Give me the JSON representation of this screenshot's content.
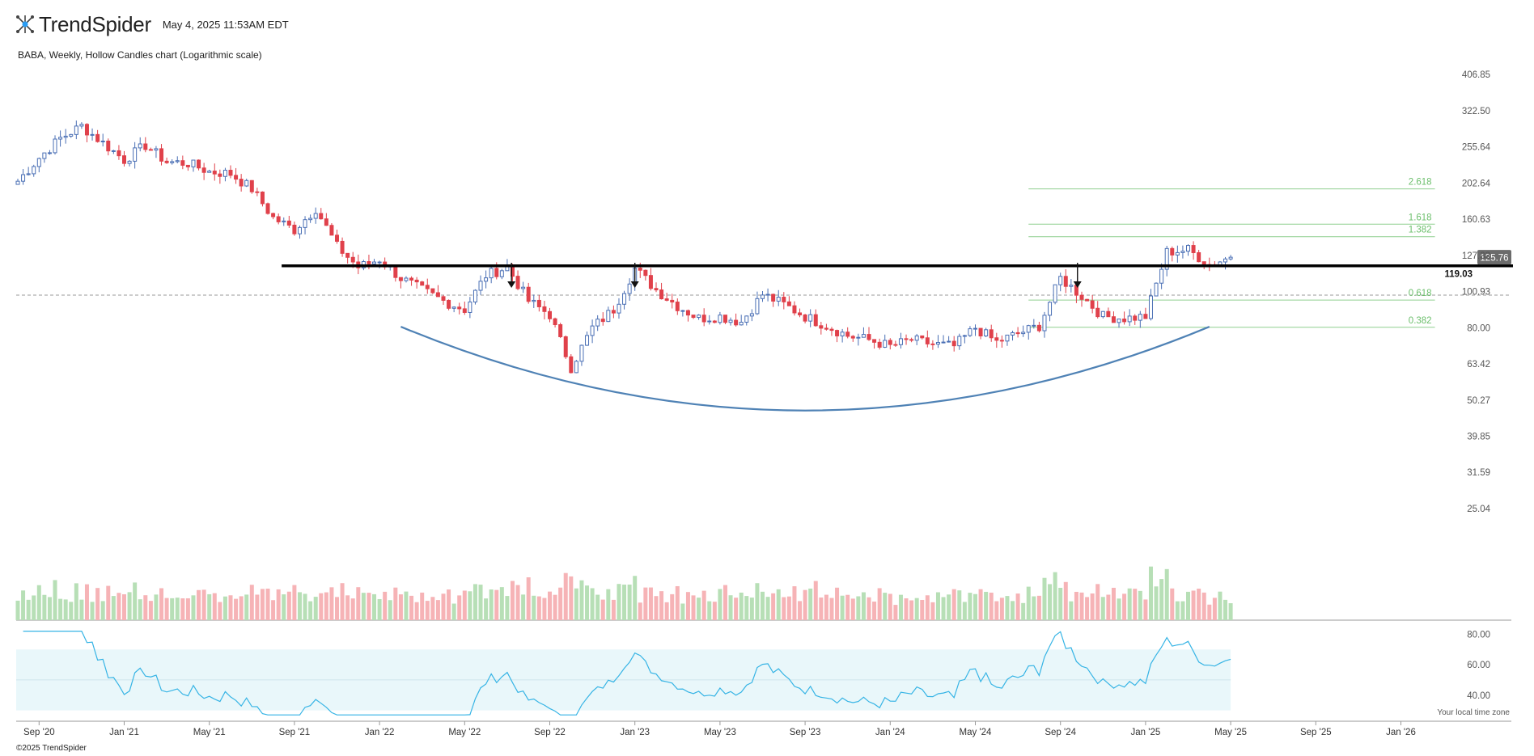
{
  "header": {
    "brand_light": "Trend",
    "brand_bold": "",
    "brand_rest": "Spider",
    "timestamp": "May 4, 2025 11:53AM EDT",
    "subtitle": "BABA, Weekly, Hollow Candles chart (Logarithmic scale)"
  },
  "footer": {
    "copyright": "©2025 TrendSpider",
    "tz_note": "Your local time zone"
  },
  "colors": {
    "up": "#4a6fb5",
    "down": "#e0414b",
    "vol_up": "#b7dfb6",
    "vol_down": "#f6b3b6",
    "rsi_line": "#36b4e5",
    "rsi_band": "#e9f7fa",
    "fib": "#8fcf8f",
    "curve": "#4f82b5",
    "price_tag": "#6b6b6b"
  },
  "chart_data": {
    "type": "candlestick",
    "scale": "log",
    "symbol": "BABA",
    "interval": "Weekly",
    "y_ticks": [
      406.85,
      322.5,
      255.64,
      202.64,
      160.63,
      127.33,
      100.93,
      80.0,
      63.42,
      50.27,
      39.85,
      31.59,
      25.04
    ],
    "x_ticks": [
      "Sep '20",
      "Jan '21",
      "May '21",
      "Sep '21",
      "Jan '22",
      "May '22",
      "Sep '22",
      "Jan '23",
      "May '23",
      "Sep '23",
      "Jan '24",
      "May '24",
      "Sep '24",
      "Jan '25",
      "May '25",
      "Sep '25",
      "Jan '26"
    ],
    "last_price": 125.76,
    "resistance_level": 119.03,
    "resistance_label": "119.03",
    "fib_levels": [
      {
        "label": "2.618",
        "value": 195.0
      },
      {
        "label": "1.618",
        "value": 155.5
      },
      {
        "label": "1.382",
        "value": 143.5
      },
      {
        "label": "0.618",
        "value": 95.5
      },
      {
        "label": "0.382",
        "value": 80.2
      }
    ],
    "markers": [
      "Jul '22",
      "Jan '23",
      "Oct '24"
    ],
    "rounded_bottom": {
      "start": "Feb '22",
      "bottom": "Aug '23",
      "end": "Apr '25",
      "bottom_value": 47.0
    },
    "closes": [
      {
        "date": "2020-08",
        "close": 205
      },
      {
        "date": "2020-09",
        "close": 238
      },
      {
        "date": "2020-10",
        "close": 270
      },
      {
        "date": "2020-11",
        "close": 292
      },
      {
        "date": "2020-12",
        "close": 262
      },
      {
        "date": "2021-01",
        "close": 235
      },
      {
        "date": "2021-02",
        "close": 258
      },
      {
        "date": "2021-03",
        "close": 232
      },
      {
        "date": "2021-04",
        "close": 230
      },
      {
        "date": "2021-05",
        "close": 218
      },
      {
        "date": "2021-06",
        "close": 215
      },
      {
        "date": "2021-07",
        "close": 195
      },
      {
        "date": "2021-08",
        "close": 162
      },
      {
        "date": "2021-09",
        "close": 150
      },
      {
        "date": "2021-10",
        "close": 172
      },
      {
        "date": "2021-11",
        "close": 135
      },
      {
        "date": "2021-12",
        "close": 118
      },
      {
        "date": "2022-01",
        "close": 124
      },
      {
        "date": "2022-02",
        "close": 110
      },
      {
        "date": "2022-03",
        "close": 102
      },
      {
        "date": "2022-04",
        "close": 95
      },
      {
        "date": "2022-05",
        "close": 90
      },
      {
        "date": "2022-06",
        "close": 112
      },
      {
        "date": "2022-07",
        "close": 118
      },
      {
        "date": "2022-08",
        "close": 95
      },
      {
        "date": "2022-09",
        "close": 87
      },
      {
        "date": "2022-10",
        "close": 62
      },
      {
        "date": "2022-11",
        "close": 80
      },
      {
        "date": "2022-12",
        "close": 90
      },
      {
        "date": "2023-01",
        "close": 117
      },
      {
        "date": "2023-02",
        "close": 102
      },
      {
        "date": "2023-03",
        "close": 92
      },
      {
        "date": "2023-04",
        "close": 85
      },
      {
        "date": "2023-05",
        "close": 86
      },
      {
        "date": "2023-06",
        "close": 83
      },
      {
        "date": "2023-07",
        "close": 99
      },
      {
        "date": "2023-08",
        "close": 93
      },
      {
        "date": "2023-09",
        "close": 86
      },
      {
        "date": "2023-10",
        "close": 81
      },
      {
        "date": "2023-11",
        "close": 76
      },
      {
        "date": "2023-12",
        "close": 74
      },
      {
        "date": "2024-01",
        "close": 71
      },
      {
        "date": "2024-02",
        "close": 74
      },
      {
        "date": "2024-03",
        "close": 72
      },
      {
        "date": "2024-04",
        "close": 71
      },
      {
        "date": "2024-05",
        "close": 80
      },
      {
        "date": "2024-06",
        "close": 73
      },
      {
        "date": "2024-07",
        "close": 77
      },
      {
        "date": "2024-08",
        "close": 81
      },
      {
        "date": "2024-09",
        "close": 110
      },
      {
        "date": "2024-10",
        "close": 98
      },
      {
        "date": "2024-11",
        "close": 86
      },
      {
        "date": "2024-12",
        "close": 85
      },
      {
        "date": "2025-01",
        "close": 86
      },
      {
        "date": "2025-02",
        "close": 130
      },
      {
        "date": "2025-03",
        "close": 132
      },
      {
        "date": "2025-04",
        "close": 120
      },
      {
        "date": "2025-05",
        "close": 125.76
      }
    ],
    "rsi_ticks": [
      80.0,
      60.0,
      40.0
    ],
    "rsi_band": [
      30,
      70
    ]
  }
}
